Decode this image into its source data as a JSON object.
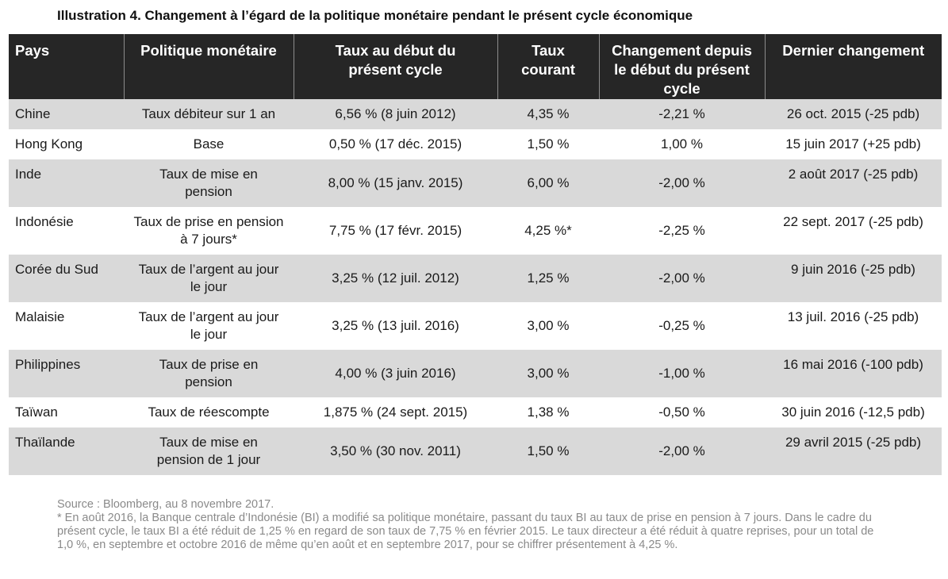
{
  "title": "Illustration 4. Changement à l’égard de la politique monétaire pendant le présent cycle économique",
  "table": {
    "headers": [
      "Pays",
      "Politique monétaire",
      "Taux au début du présent cycle",
      "Taux courant",
      "Changement depuis le début du présent cycle",
      "Dernier changement"
    ],
    "rows": [
      {
        "country": "Chine",
        "policy": "Taux débiteur sur 1 an",
        "start_rate": "6,56 % (8 juin 2012)",
        "current_rate": "4,35 %",
        "change": "-2,21 %",
        "last_change": "26 oct. 2015 (-25 pdb)"
      },
      {
        "country": "Hong Kong",
        "policy": "Base",
        "start_rate": "0,50 % (17 déc. 2015)",
        "current_rate": "1,50 %",
        "change": "1,00 %",
        "last_change": "15 juin 2017 (+25 pdb)"
      },
      {
        "country": "Inde",
        "policy": "Taux de mise en pension",
        "start_rate": "8,00 % (15 janv. 2015)",
        "current_rate": "6,00 %",
        "change": "-2,00 %",
        "last_change": "2 août 2017 (-25 pdb)"
      },
      {
        "country": "Indonésie",
        "policy": "Taux de prise en pension à 7 jours*",
        "start_rate": "7,75 % (17 févr. 2015)",
        "current_rate": "4,25 %*",
        "change": "-2,25 %",
        "last_change": "22 sept. 2017 (-25 pdb)"
      },
      {
        "country": "Corée du Sud",
        "policy": "Taux de l’argent au jour le jour",
        "start_rate": "3,25 % (12 juil. 2012)",
        "current_rate": "1,25 %",
        "change": "-2,00 %",
        "last_change": "9 juin 2016 (-25 pdb)"
      },
      {
        "country": "Malaisie",
        "policy": "Taux de l’argent au jour le jour",
        "start_rate": "3,25 % (13 juil. 2016)",
        "current_rate": "3,00 %",
        "change": "-0,25 %",
        "last_change": "13 juil. 2016 (-25 pdb)"
      },
      {
        "country": "Philippines",
        "policy": "Taux de prise en pension",
        "start_rate": "4,00 % (3 juin 2016)",
        "current_rate": "3,00 %",
        "change": "-1,00 %",
        "last_change": "16 mai 2016 (-100 pdb)"
      },
      {
        "country": "Taïwan",
        "policy": "Taux de réescompte",
        "start_rate": "1,875 % (24 sept. 2015)",
        "current_rate": "1,38 %",
        "change": "-0,50 %",
        "last_change": "30 juin 2016 (-12,5 pdb)"
      },
      {
        "country": "Thaïlande",
        "policy": "Taux de mise en pension de 1 jour",
        "start_rate": "3,50 % (30 nov. 2011)",
        "current_rate": "1,50 %",
        "change": "-2,00 %",
        "last_change": "29 avril 2015 (-25 pdb)"
      }
    ]
  },
  "footnote": {
    "source": "Source : Bloomberg, au 8 novembre 2017.",
    "note": "* En août 2016, la Banque centrale d’Indonésie (BI) a modifié sa politique monétaire, passant du taux BI au taux de prise en pension à 7 jours. Dans le cadre du présent cycle, le taux BI a été réduit de 1,25 % en regard de son taux de 7,75 % en février 2015. Le taux directeur a été réduit à quatre reprises, pour un total de 1,0 %, en septembre et octobre 2016 de même qu’en août et en septembre 2017, pour se chiffrer présentement à 4,25 %."
  }
}
